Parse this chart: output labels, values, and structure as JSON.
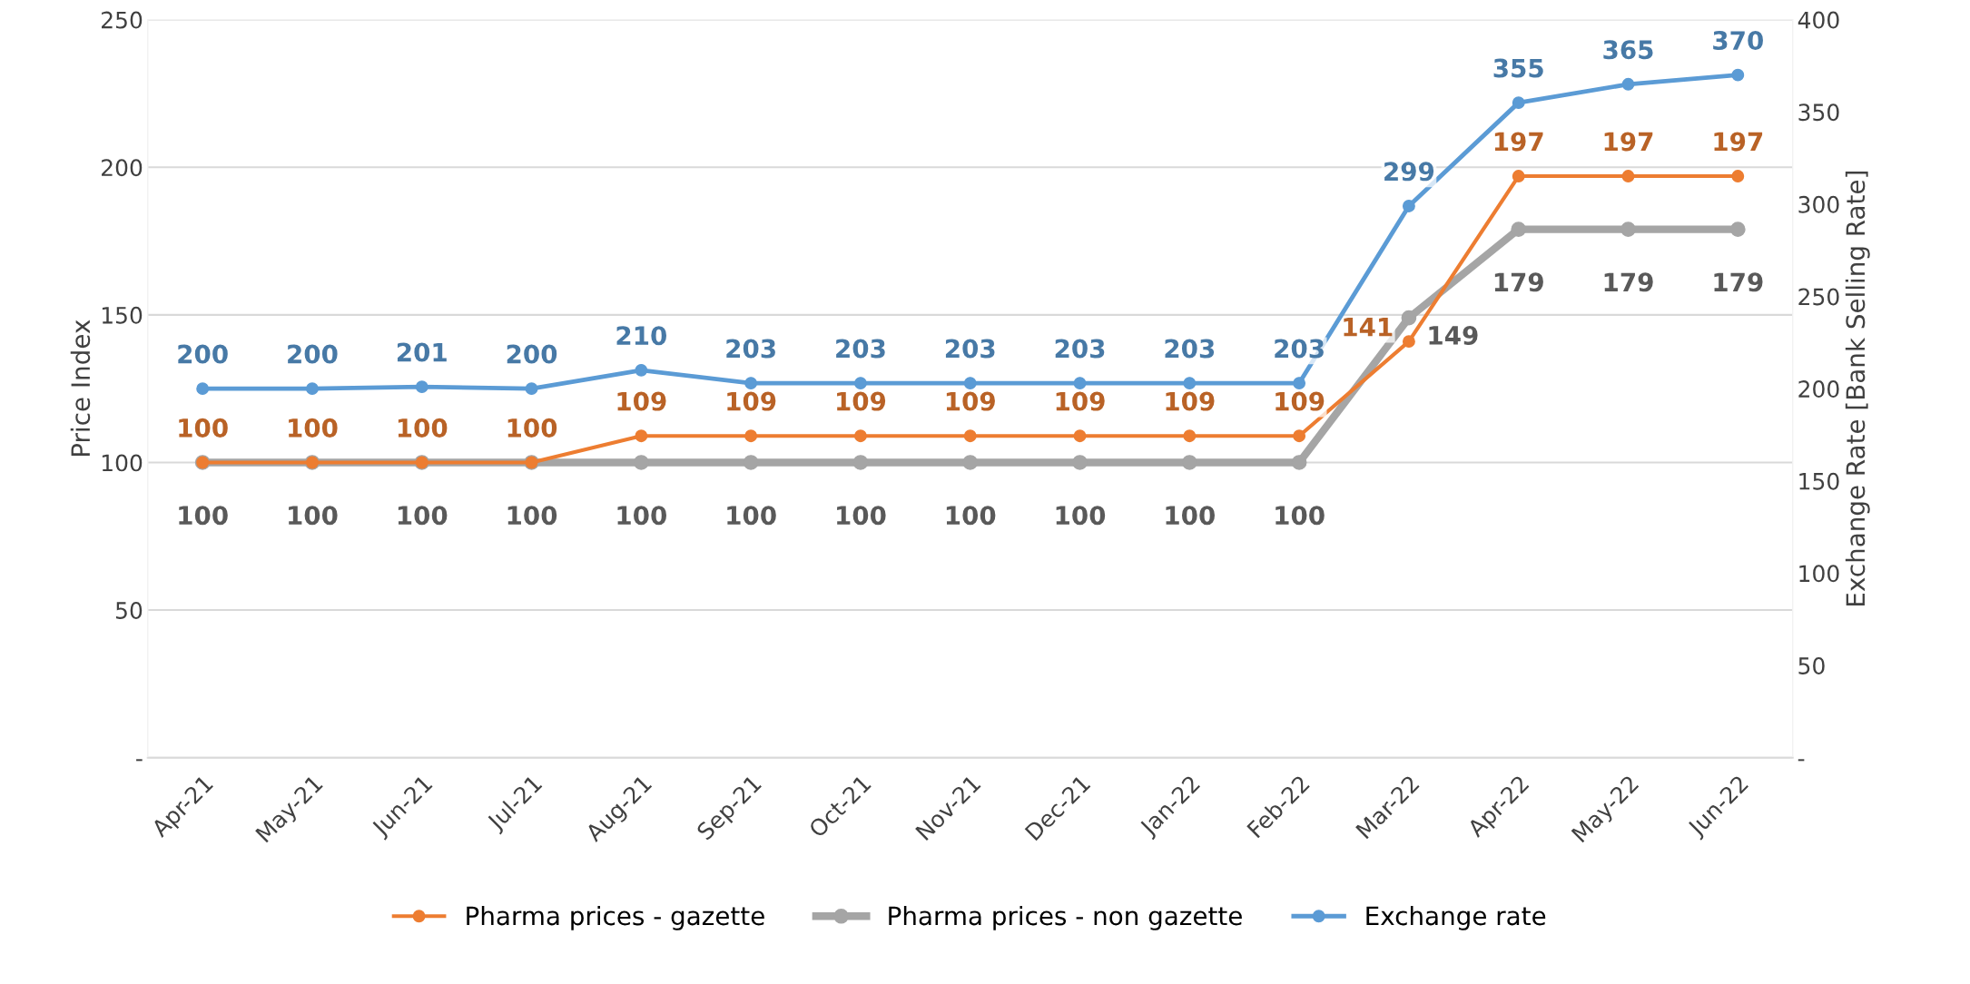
{
  "chart_data": {
    "type": "line",
    "ylabel": "Price Index",
    "y2label": "Exchange Rate [Bank Selling Rate]",
    "categories": [
      "Apr-21",
      "May-21",
      "Jun-21",
      "Jul-21",
      "Aug-21",
      "Sep-21",
      "Oct-21",
      "Nov-21",
      "Dec-21",
      "Jan-22",
      "Feb-22",
      "Mar-22",
      "Apr-22",
      "May-22",
      "Jun-22"
    ],
    "series": [
      {
        "name": "Pharma prices - gazette",
        "color": "#ed7d31",
        "values": [
          100,
          100,
          100,
          100,
          109,
          109,
          109,
          109,
          109,
          109,
          109,
          141,
          197,
          197,
          197
        ]
      },
      {
        "name": "Pharma prices - non gazette",
        "color": "#a5a5a5",
        "values": [
          100,
          100,
          100,
          100,
          100,
          100,
          100,
          100,
          100,
          100,
          100,
          149,
          179,
          179,
          179
        ]
      },
      {
        "name": "Exchange rate",
        "color": "#5b9bd5",
        "axis": "y2",
        "values": [
          200,
          200,
          201,
          200,
          210,
          203,
          203,
          203,
          203,
          203,
          203,
          299,
          355,
          365,
          370
        ]
      }
    ],
    "ylim": [
      0,
      250
    ],
    "yticks": [
      {
        "value": 0,
        "label": "-"
      },
      50,
      100,
      150,
      200,
      250
    ],
    "y2lim": [
      0,
      400
    ],
    "y2ticks": [
      {
        "value": 0,
        "label": "-"
      },
      50,
      100,
      150,
      200,
      250,
      300,
      350,
      400
    ],
    "grid": "y",
    "legend": "bottom",
    "marker": "circle",
    "line_style": "solid",
    "data_labels": true
  }
}
